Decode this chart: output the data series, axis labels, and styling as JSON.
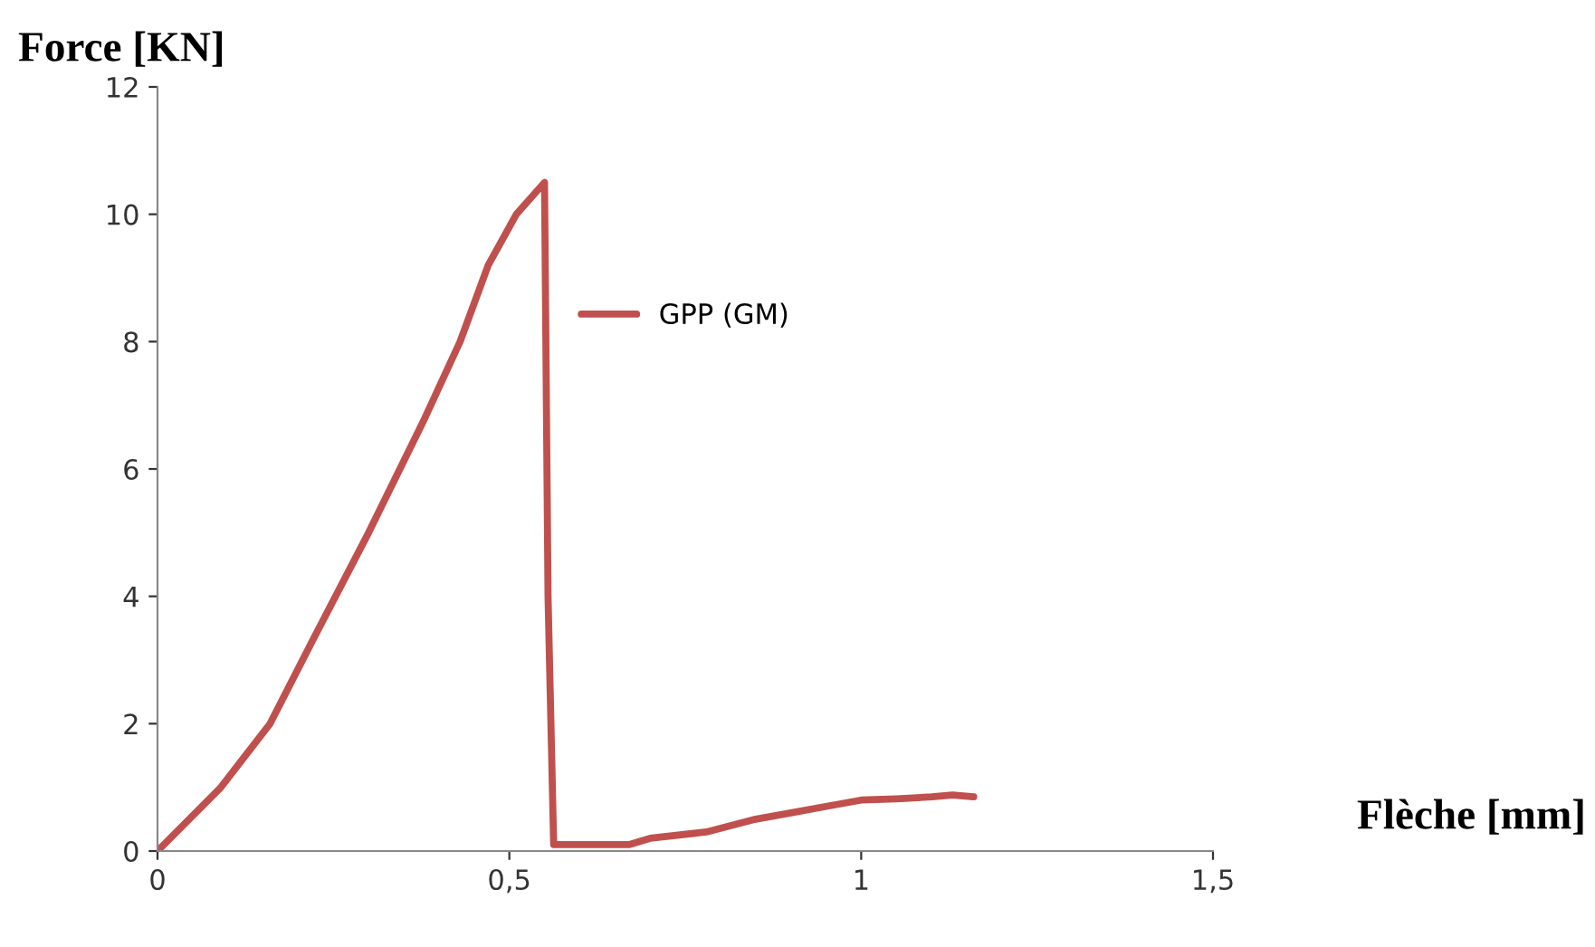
{
  "chart_data": {
    "type": "line",
    "ylabel": "Force [KN]",
    "xlabel": "Flèche [mm]",
    "xlim": [
      0,
      1.5
    ],
    "xticks": [
      0,
      {
        "value": 0.5,
        "label": "0,5"
      },
      1,
      {
        "value": 1.5,
        "label": "1,5"
      }
    ],
    "ylim": [
      0,
      12
    ],
    "yticks": [
      0,
      2,
      4,
      6,
      8,
      10,
      12
    ],
    "grid": false,
    "legend": "center",
    "marker": "none",
    "line_style": "solid",
    "series": [
      {
        "name": "GPP (GM)",
        "color": "#c0504d",
        "x": [
          0,
          0.09,
          0.16,
          0.22,
          0.3,
          0.38,
          0.43,
          0.47,
          0.51,
          0.55,
          0.555,
          0.563,
          0.6,
          0.67,
          0.7,
          0.78,
          0.85,
          0.9,
          0.95,
          1.0,
          1.05,
          1.1,
          1.13,
          1.16
        ],
        "values": [
          0,
          1,
          2,
          3.3,
          5,
          6.8,
          8,
          9.2,
          10,
          10.5,
          4,
          0.1,
          0.1,
          0.1,
          0.2,
          0.3,
          0.5,
          0.6,
          0.7,
          0.8,
          0.82,
          0.85,
          0.88,
          0.85
        ]
      }
    ]
  }
}
